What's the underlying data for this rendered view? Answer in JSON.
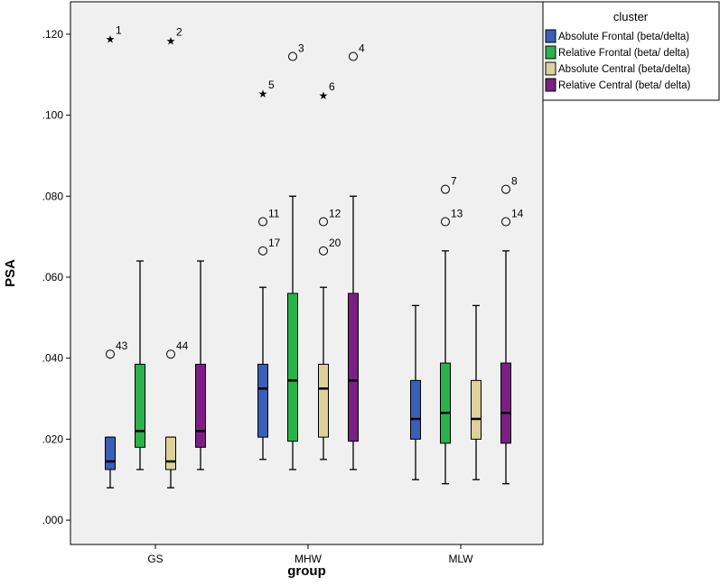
{
  "chart_data": {
    "type": "boxplot",
    "xlabel": "group",
    "ylabel": "PSA",
    "ylim": [
      -0.006,
      0.128
    ],
    "yticks": [
      ".000",
      ".020",
      ".040",
      ".060",
      ".080",
      ".100",
      ".120"
    ],
    "ytick_values": [
      0.0,
      0.02,
      0.04,
      0.06,
      0.08,
      0.1,
      0.12
    ],
    "categories": [
      "GS",
      "MHW",
      "MLW"
    ],
    "legend": {
      "title": "cluster",
      "position": "top-right-outside"
    },
    "background": "#f0f0f0",
    "series": [
      {
        "name": "Absolute Frontal (beta/delta)",
        "color": "#3a5fb8",
        "boxes": [
          {
            "min": 0.008,
            "q1": 0.0125,
            "median": 0.0145,
            "q3": 0.0205,
            "max": 0.0205,
            "outliers": [
              {
                "value": 0.119,
                "label": "1",
                "marker": "star"
              },
              {
                "value": 0.041,
                "label": "43",
                "marker": "circle"
              }
            ]
          },
          {
            "min": 0.015,
            "q1": 0.0205,
            "median": 0.0325,
            "q3": 0.0385,
            "max": 0.0575,
            "outliers": [
              {
                "value": 0.1055,
                "label": "5",
                "marker": "star"
              },
              {
                "value": 0.0737,
                "label": "11",
                "marker": "circle"
              },
              {
                "value": 0.0665,
                "label": "17",
                "marker": "circle"
              }
            ]
          },
          {
            "min": 0.01,
            "q1": 0.02,
            "median": 0.025,
            "q3": 0.0345,
            "max": 0.053,
            "outliers": []
          }
        ]
      },
      {
        "name": "Relative Frontal (beta/ delta)",
        "color": "#2ab34a",
        "boxes": [
          {
            "min": 0.0125,
            "q1": 0.018,
            "median": 0.022,
            "q3": 0.0385,
            "max": 0.064,
            "outliers": []
          },
          {
            "min": 0.0125,
            "q1": 0.0195,
            "median": 0.0345,
            "q3": 0.056,
            "max": 0.08,
            "outliers": [
              {
                "value": 0.1145,
                "label": "3",
                "marker": "circle"
              }
            ]
          },
          {
            "min": 0.009,
            "q1": 0.019,
            "median": 0.0265,
            "q3": 0.0388,
            "max": 0.0665,
            "outliers": [
              {
                "value": 0.0817,
                "label": "7",
                "marker": "circle"
              },
              {
                "value": 0.0737,
                "label": "13",
                "marker": "circle"
              }
            ]
          }
        ]
      },
      {
        "name": "Absolute Central (beta/delta)",
        "color": "#dcd29a",
        "boxes": [
          {
            "min": 0.008,
            "q1": 0.0125,
            "median": 0.0145,
            "q3": 0.0205,
            "max": 0.0205,
            "outliers": [
              {
                "value": 0.1185,
                "label": "2",
                "marker": "star"
              },
              {
                "value": 0.041,
                "label": "44",
                "marker": "circle"
              }
            ]
          },
          {
            "min": 0.015,
            "q1": 0.0205,
            "median": 0.0325,
            "q3": 0.0385,
            "max": 0.0575,
            "outliers": [
              {
                "value": 0.105,
                "label": "6",
                "marker": "star"
              },
              {
                "value": 0.0737,
                "label": "12",
                "marker": "circle"
              },
              {
                "value": 0.0665,
                "label": "20",
                "marker": "circle"
              }
            ]
          },
          {
            "min": 0.01,
            "q1": 0.02,
            "median": 0.025,
            "q3": 0.0345,
            "max": 0.053,
            "outliers": []
          }
        ]
      },
      {
        "name": "Relative Central (beta/ delta)",
        "color": "#7b1f84",
        "boxes": [
          {
            "min": 0.0125,
            "q1": 0.018,
            "median": 0.022,
            "q3": 0.0385,
            "max": 0.064,
            "outliers": []
          },
          {
            "min": 0.0125,
            "q1": 0.0195,
            "median": 0.0345,
            "q3": 0.056,
            "max": 0.08,
            "outliers": [
              {
                "value": 0.1145,
                "label": "4",
                "marker": "circle"
              }
            ]
          },
          {
            "min": 0.009,
            "q1": 0.019,
            "median": 0.0265,
            "q3": 0.0388,
            "max": 0.0665,
            "outliers": [
              {
                "value": 0.0817,
                "label": "8",
                "marker": "circle"
              },
              {
                "value": 0.0737,
                "label": "14",
                "marker": "circle"
              }
            ]
          }
        ]
      }
    ]
  }
}
